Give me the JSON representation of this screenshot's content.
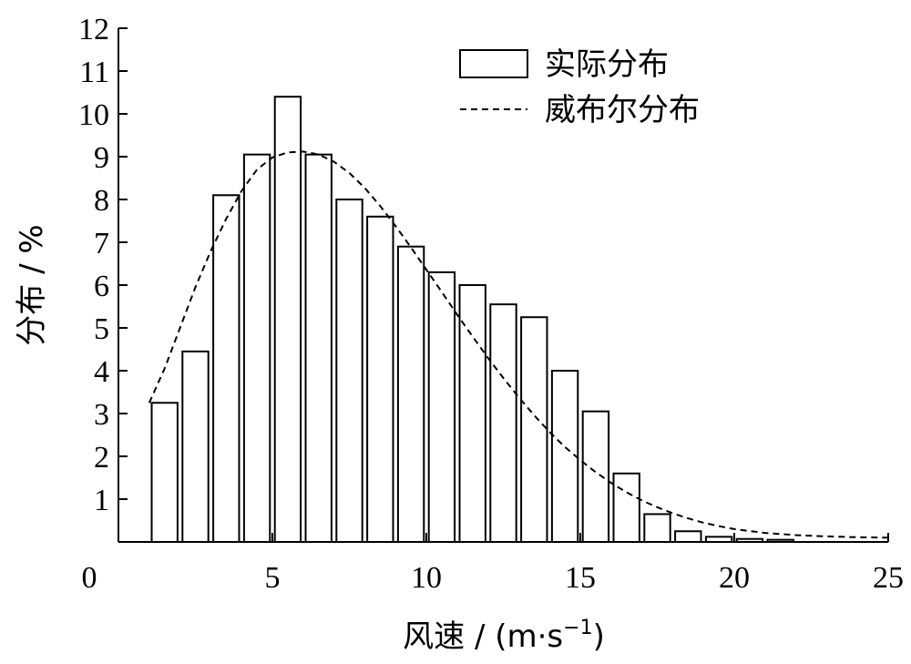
{
  "chart_data": {
    "type": "bar",
    "xlabel_prefix": "风速 / (m·s",
    "xlabel_exp": "−1",
    "xlabel_suffix": ")",
    "ylabel": "分布 / %",
    "xlim": [
      0,
      25
    ],
    "ylim": [
      0,
      12
    ],
    "x_ticks": [
      "0",
      "5",
      "10",
      "15",
      "20",
      "25"
    ],
    "y_ticks": [
      "1",
      "2",
      "3",
      "4",
      "5",
      "6",
      "7",
      "8",
      "9",
      "10",
      "11",
      "12"
    ],
    "grid": false,
    "legend_position": "top-right",
    "series": [
      {
        "name": "实际分布",
        "kind": "bar",
        "x": [
          1.5,
          2.5,
          3.5,
          4.5,
          5.5,
          6.5,
          7.5,
          8.5,
          9.5,
          10.5,
          11.5,
          12.5,
          13.5,
          14.5,
          15.5,
          16.5,
          17.5,
          18.5,
          19.5,
          20.5,
          21.5
        ],
        "values": [
          3.25,
          4.45,
          8.1,
          9.05,
          10.4,
          9.05,
          8.0,
          7.6,
          6.9,
          6.3,
          6.0,
          5.55,
          5.25,
          4.0,
          3.05,
          1.6,
          0.65,
          0.25,
          0.12,
          0.07,
          0.05
        ]
      },
      {
        "name": "威布尔分布",
        "kind": "line",
        "style": "dashed",
        "x": [
          1.0,
          1.5,
          2.0,
          2.5,
          3.0,
          3.5,
          4.0,
          4.5,
          5.0,
          5.5,
          6.0,
          6.5,
          7.0,
          7.5,
          8.0,
          8.5,
          9.0,
          9.5,
          10.0,
          10.5,
          11.0,
          11.5,
          12.0,
          12.5,
          13.0,
          13.5,
          14.0,
          14.5,
          15.0,
          15.5,
          16.0,
          16.5,
          17.0,
          17.5,
          18.0,
          18.5,
          19.0,
          19.5,
          20.0,
          21.0,
          22.0,
          23.0,
          24.0,
          25.0
        ],
        "values": [
          3.25,
          4.05,
          5.0,
          5.95,
          6.8,
          7.55,
          8.2,
          8.7,
          8.98,
          9.1,
          9.12,
          9.05,
          8.88,
          8.62,
          8.27,
          7.85,
          7.38,
          6.88,
          6.36,
          5.84,
          5.31,
          4.8,
          4.3,
          3.83,
          3.38,
          2.96,
          2.57,
          2.22,
          1.91,
          1.63,
          1.38,
          1.16,
          0.97,
          0.81,
          0.67,
          0.55,
          0.45,
          0.37,
          0.3,
          0.21,
          0.16,
          0.13,
          0.11,
          0.1
        ]
      }
    ]
  }
}
